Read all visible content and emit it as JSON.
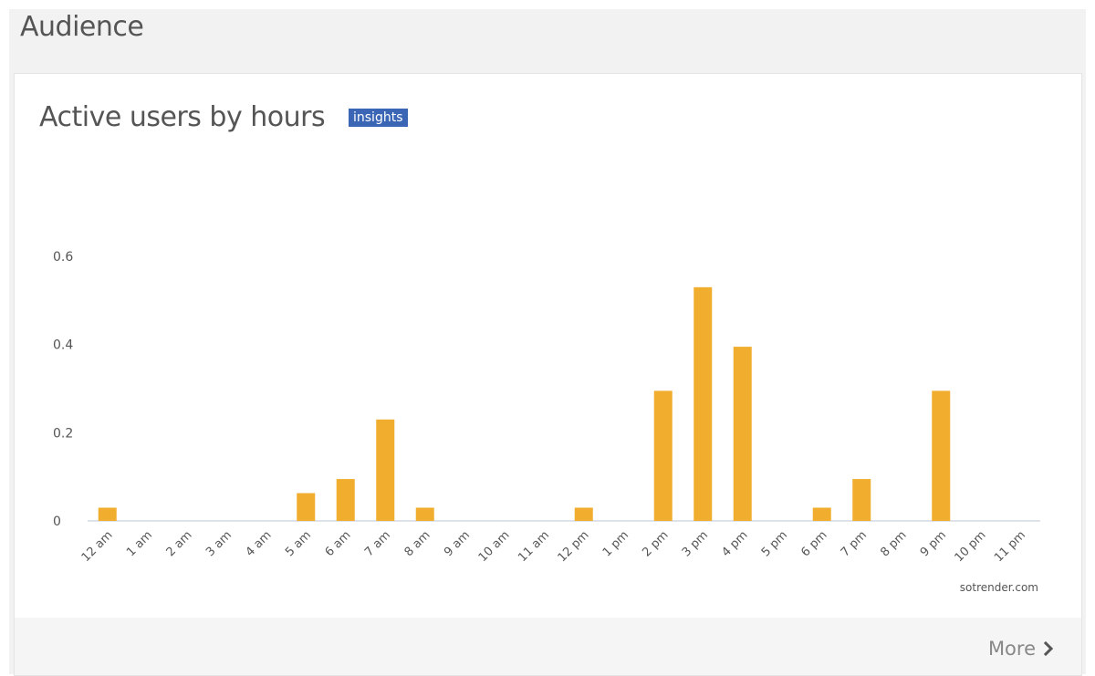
{
  "section": {
    "title": "Audience"
  },
  "card": {
    "title": "Active users by hours",
    "badge": "insights",
    "credit": "sotrender.com",
    "more_label": "More"
  },
  "colors": {
    "bar": "#f0ad2e",
    "badge": "#3b66b5",
    "axis": "#bcc7d4",
    "text": "#555555"
  },
  "chart_data": {
    "type": "bar",
    "title": "Active users by hours",
    "xlabel": "",
    "ylabel": "",
    "categories": [
      "12 am",
      "1 am",
      "2 am",
      "3 am",
      "4 am",
      "5 am",
      "6 am",
      "7 am",
      "8 am",
      "9 am",
      "10 am",
      "11 am",
      "12 pm",
      "1 pm",
      "2 pm",
      "3 pm",
      "4 pm",
      "5 pm",
      "6 pm",
      "7 pm",
      "8 pm",
      "9 pm",
      "10 pm",
      "11 pm"
    ],
    "values": [
      0.03,
      0,
      0,
      0,
      0,
      0.063,
      0.095,
      0.23,
      0.03,
      0,
      0,
      0,
      0.03,
      0,
      0.295,
      0.53,
      0.395,
      0,
      0.03,
      0.095,
      0,
      0.295,
      0,
      0
    ],
    "yticks": [
      "0",
      "0.2",
      "0.4",
      "0.6"
    ],
    "ylim": [
      0,
      0.6
    ],
    "grid": false,
    "legend": "none"
  }
}
